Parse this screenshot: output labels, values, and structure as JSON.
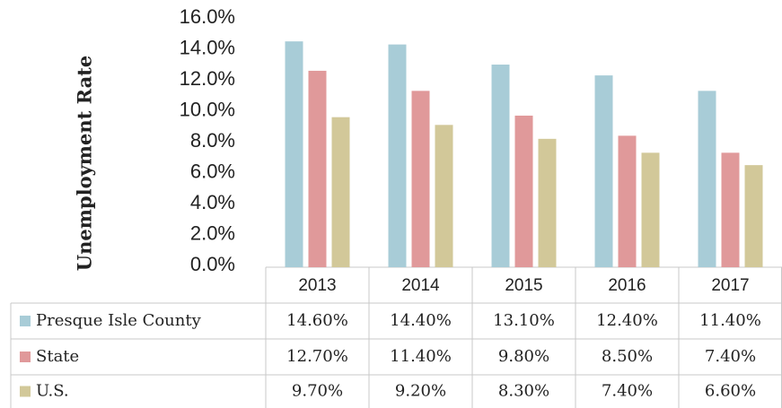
{
  "chart_data": {
    "type": "bar",
    "y_axis_label": "Unemployment Rate",
    "categories": [
      "2013",
      "2014",
      "2015",
      "2016",
      "2017"
    ],
    "series": [
      {
        "name": "Presque Isle County",
        "color": "#a8ccd7",
        "values": [
          14.6,
          14.4,
          13.1,
          12.4,
          11.4
        ],
        "value_labels": [
          "14.60%",
          "14.40%",
          "13.10%",
          "12.40%",
          "11.40%"
        ]
      },
      {
        "name": "State",
        "color": "#e0999a",
        "values": [
          12.7,
          11.4,
          9.8,
          8.5,
          7.4
        ],
        "value_labels": [
          "12.70%",
          "11.40%",
          "9.80%",
          "8.50%",
          "7.40%"
        ]
      },
      {
        "name": "U.S.",
        "color": "#d2c899",
        "values": [
          9.7,
          9.2,
          8.3,
          7.4,
          6.6
        ],
        "value_labels": [
          "9.70%",
          "9.20%",
          "8.30%",
          "7.40%",
          "6.60%"
        ]
      }
    ],
    "ylim": [
      0,
      16
    ],
    "yticks": [
      {
        "value": 0,
        "label": "0.0%"
      },
      {
        "value": 2,
        "label": "2.0%"
      },
      {
        "value": 4,
        "label": "4.0%"
      },
      {
        "value": 6,
        "label": "6.0%"
      },
      {
        "value": 8,
        "label": "8.0%"
      },
      {
        "value": 10,
        "label": "10.0%"
      },
      {
        "value": 12,
        "label": "12.0%"
      },
      {
        "value": 14,
        "label": "14.0%"
      },
      {
        "value": 16,
        "label": "16.0%"
      }
    ],
    "grid": false
  }
}
